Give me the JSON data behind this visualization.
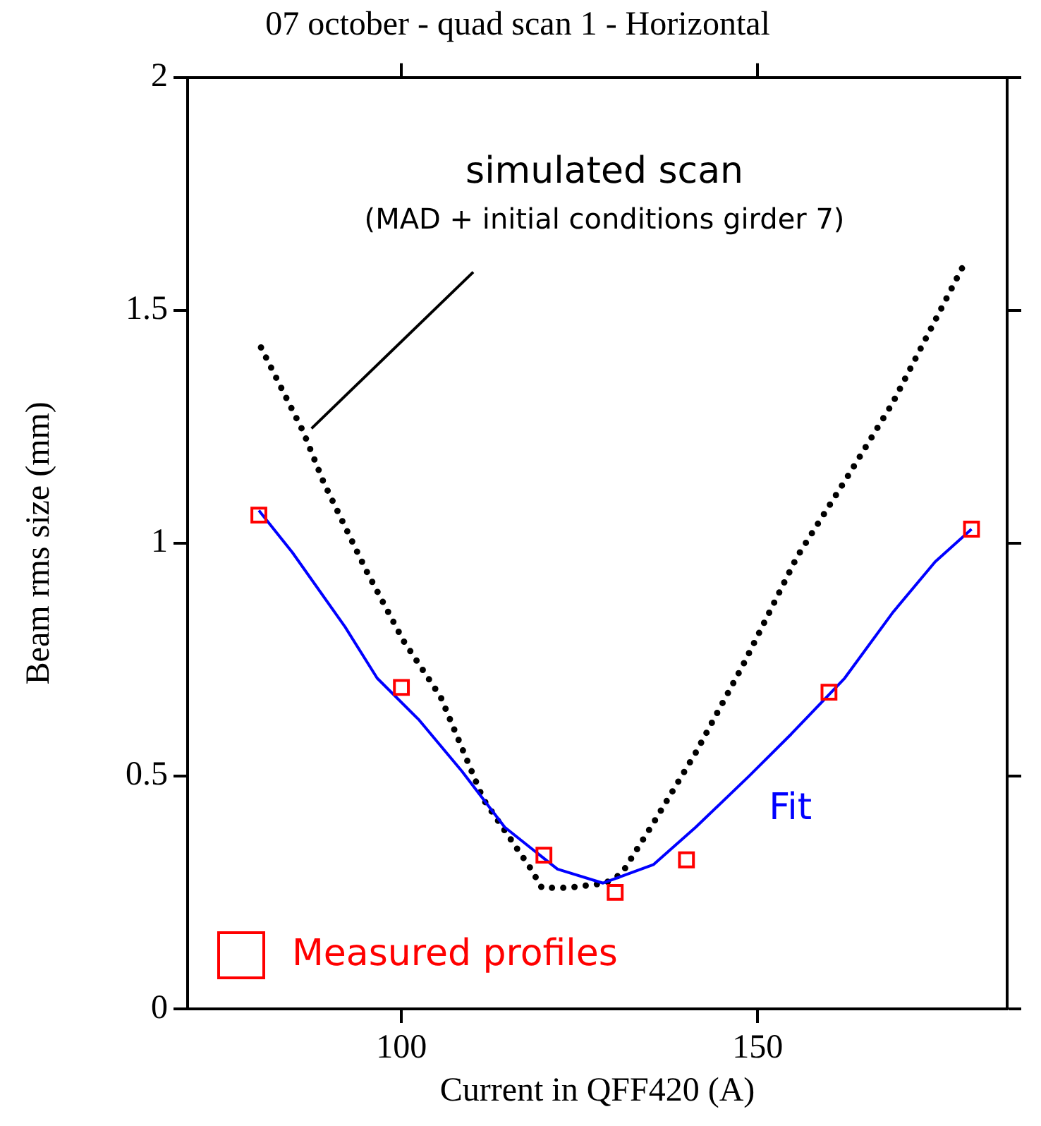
{
  "chart_data": {
    "type": "scatter",
    "title": "07 october - quad scan 1 - Horizontal",
    "xlabel": "Current in QFF420 (A)",
    "ylabel": "Beam rms size (mm)",
    "xlim": [
      70,
      185
    ],
    "xticks": [
      100,
      150
    ],
    "ylim": [
      0,
      2
    ],
    "yticks": [
      0,
      0.5,
      1,
      1.5,
      2
    ],
    "grid": false,
    "legend": "bottom left",
    "annotations": [
      "(MAD + initial conditions girder 7)"
    ],
    "series": [
      {
        "name": "Measured profiles",
        "color": "#ff0000",
        "marker": "square",
        "x": [
          80,
          100,
          120,
          130,
          140,
          160,
          180
        ],
        "values": [
          1.06,
          0.69,
          0.33,
          0.25,
          0.32,
          0.68,
          1.03
        ]
      },
      {
        "name": "Fit",
        "type": "line",
        "color": "#0000ff",
        "line_style": "solid",
        "marker": "none",
        "x": [
          80,
          84.7,
          92.1,
          96.6,
          102.5,
          108.5,
          114.5,
          121.9,
          128.3,
          135.4,
          141.3,
          148.8,
          154.7,
          162.2,
          168.9,
          174.9,
          180
        ],
        "values": [
          1.07,
          0.98,
          0.82,
          0.71,
          0.62,
          0.51,
          0.39,
          0.3,
          0.27,
          0.31,
          0.39,
          0.5,
          0.59,
          0.71,
          0.85,
          0.96,
          1.03
        ]
      },
      {
        "name": "simulated scan",
        "type": "line",
        "color": "#000000",
        "line_style": "dotted",
        "marker": "none",
        "x": [
          80.3,
          86.2,
          89.1,
          95.1,
          100.3,
          105.5,
          111.5,
          118.2,
          119.7,
          123.4,
          128.6,
          130.9,
          135.4,
          141.3,
          148,
          155.5,
          162.9,
          168.9,
          179
        ],
        "values": [
          1.42,
          1.24,
          1.13,
          0.94,
          0.79,
          0.67,
          0.45,
          0.3,
          0.26,
          0.26,
          0.27,
          0.29,
          0.4,
          0.55,
          0.74,
          0.97,
          1.15,
          1.3,
          1.6
        ]
      }
    ]
  }
}
